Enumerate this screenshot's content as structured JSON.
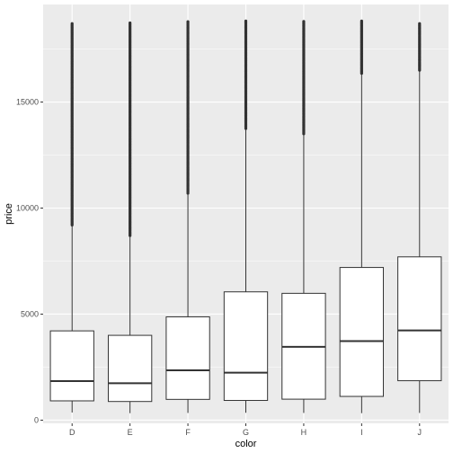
{
  "chart_data": {
    "type": "boxplot",
    "title": "",
    "xlabel": "color",
    "ylabel": "price",
    "categories": [
      "D",
      "E",
      "F",
      "G",
      "H",
      "I",
      "J"
    ],
    "ylim": [
      -150,
      19600
    ],
    "yticks": [
      0,
      5000,
      10000,
      15000
    ],
    "ytick_labels": [
      "0",
      "5000",
      "10000",
      "15000"
    ],
    "boxes": [
      {
        "name": "D",
        "lower_whisker": 360,
        "q1": 910,
        "median": 1840,
        "q3": 4210,
        "upper_whisker": 9150,
        "outlier_range": [
          9200,
          18700
        ]
      },
      {
        "name": "E",
        "lower_whisker": 330,
        "q1": 880,
        "median": 1740,
        "q3": 4000,
        "upper_whisker": 8650,
        "outlier_range": [
          8700,
          18730
        ]
      },
      {
        "name": "F",
        "lower_whisker": 340,
        "q1": 980,
        "median": 2350,
        "q3": 4870,
        "upper_whisker": 10670,
        "outlier_range": [
          10700,
          18790
        ]
      },
      {
        "name": "G",
        "lower_whisker": 350,
        "q1": 930,
        "median": 2240,
        "q3": 6050,
        "upper_whisker": 13700,
        "outlier_range": [
          13750,
          18820
        ]
      },
      {
        "name": "H",
        "lower_whisker": 340,
        "q1": 990,
        "median": 3460,
        "q3": 5980,
        "upper_whisker": 13450,
        "outlier_range": [
          13500,
          18800
        ]
      },
      {
        "name": "I",
        "lower_whisker": 330,
        "q1": 1120,
        "median": 3730,
        "q3": 7200,
        "upper_whisker": 16300,
        "outlier_range": [
          16350,
          18820
        ]
      },
      {
        "name": "J",
        "lower_whisker": 340,
        "q1": 1860,
        "median": 4230,
        "q3": 7700,
        "upper_whisker": 16450,
        "outlier_range": [
          16500,
          18700
        ]
      }
    ],
    "grid": true,
    "colors": {
      "panel_background": "#ebebeb",
      "grid_major": "#ffffff",
      "box_fill": "#ffffff",
      "box_line": "#333333",
      "outlier": "#333333"
    }
  }
}
